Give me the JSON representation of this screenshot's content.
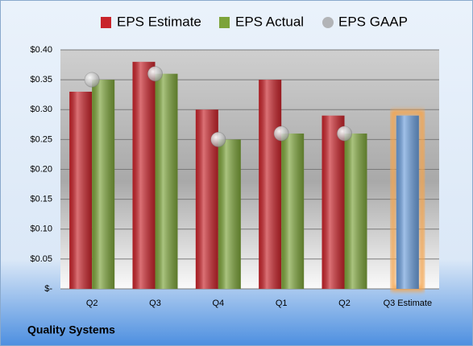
{
  "chart_data": {
    "type": "bar",
    "categories": [
      "Q2",
      "Q3",
      "Q4",
      "Q1",
      "Q2",
      "Q3 Estimate"
    ],
    "series": [
      {
        "name": "EPS Estimate",
        "color": "#c8242b",
        "values": [
          0.33,
          0.38,
          0.3,
          0.35,
          0.29,
          0.29
        ],
        "point_colors": [
          "#c8242b",
          "#c8242b",
          "#c8242b",
          "#c8242b",
          "#c8242b",
          "#6d9fdc"
        ],
        "glow": "#f6a44c"
      },
      {
        "name": "EPS Actual",
        "color": "#7ca33a",
        "values": [
          0.35,
          0.36,
          0.25,
          0.26,
          0.26,
          null
        ]
      },
      {
        "name": "EPS GAAP",
        "color": "#9a9a9a",
        "marker": "circle",
        "values": [
          0.35,
          0.36,
          0.25,
          0.26,
          0.26,
          null
        ]
      }
    ],
    "ylim": [
      0,
      0.4
    ],
    "yticks": [
      {
        "value": 0,
        "label": "$-"
      },
      {
        "value": 0.05,
        "label": "$0.05"
      },
      {
        "value": 0.1,
        "label": "$0.10"
      },
      {
        "value": 0.15,
        "label": "$0.15"
      },
      {
        "value": 0.2,
        "label": "$0.20"
      },
      {
        "value": 0.25,
        "label": "$0.25"
      },
      {
        "value": 0.3,
        "label": "$0.30"
      },
      {
        "value": 0.35,
        "label": "$0.35"
      },
      {
        "value": 0.4,
        "label": "$0.40"
      }
    ],
    "grid": true,
    "legend": "top",
    "footer": "Quality Systems"
  }
}
